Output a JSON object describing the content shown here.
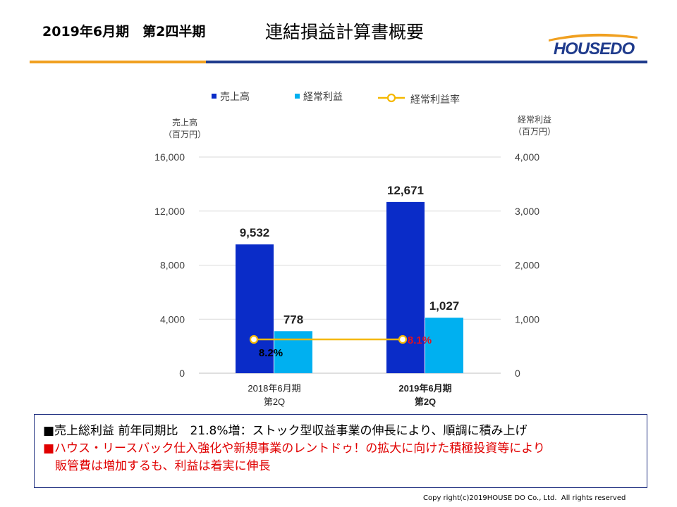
{
  "header": {
    "period": "2019年6月期　第2四半期",
    "title": "連結損益計算書概要",
    "logo_text": "HOUSEDO",
    "accent_orange": "#f0a020",
    "accent_navy": "#1f3b8c"
  },
  "chart_data": {
    "type": "bar",
    "categories": [
      "2018年6月期\n第2Q",
      "2019年6月期\n第2Q"
    ],
    "series": [
      {
        "name": "売上高",
        "axis": "left",
        "values": [
          9532,
          12671
        ],
        "labels": [
          "9,532",
          "12,671"
        ],
        "color": "#0a2cc8"
      },
      {
        "name": "経常利益",
        "axis": "right",
        "values": [
          778,
          1027
        ],
        "labels": [
          "778",
          "1,027"
        ],
        "color": "#00b0f0"
      }
    ],
    "line_series": {
      "name": "経常利益率",
      "type": "line",
      "values": [
        8.2,
        8.1
      ],
      "labels": [
        "8.2%",
        "8.1%"
      ],
      "color": "#f5b800",
      "label_colors": [
        "#000000",
        "#e01020"
      ]
    },
    "left_axis": {
      "label": "売上高\n（百万円）",
      "ticks": [
        0,
        4000,
        8000,
        12000,
        16000
      ],
      "tick_labels": [
        "0",
        "4,000",
        "8,000",
        "12,000",
        "16,000"
      ],
      "ylim": [
        0,
        16000
      ]
    },
    "right_axis": {
      "label": "経常利益\n（百万円）",
      "ticks": [
        0,
        1000,
        2000,
        3000,
        4000
      ],
      "tick_labels": [
        "0",
        "1,000",
        "2,000",
        "3,000",
        "4,000"
      ],
      "ylim": [
        0,
        4000
      ]
    },
    "legend_placement": "top",
    "grid": "horizontal"
  },
  "notes": {
    "line1": "■売上総利益 前年同期比　21.8%増：ストック型収益事業の伸長により、順調に積み上げ",
    "line2": "■ハウス・リースバック仕入強化や新規事業のレントドゥ！の拡大に向けた積極投資等により",
    "line3": "　販管費は増加するも、利益は着実に伸長"
  },
  "footer": {
    "copyright": "Copy right(c)2019HOUSE DO Co., Ltd.  All rights reserved"
  }
}
